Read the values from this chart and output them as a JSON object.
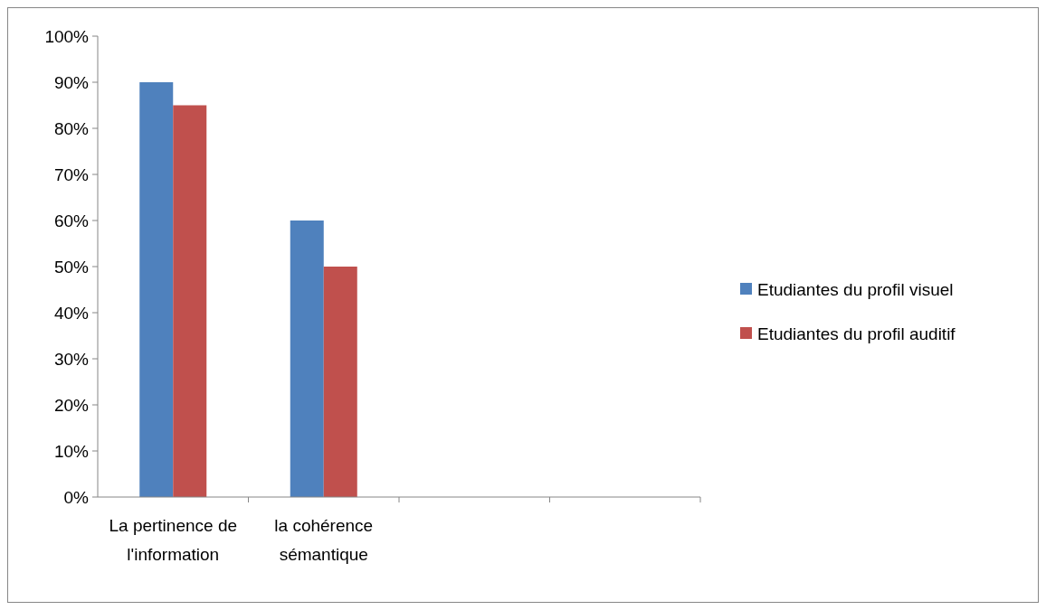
{
  "chart_data": {
    "type": "bar",
    "categories": [
      "La pertinence de l'information",
      "la cohérence sémantique",
      null,
      null
    ],
    "series": [
      {
        "name": "Etudiantes du profil visuel",
        "color": "#4f81bd",
        "values": [
          90,
          60,
          null,
          null
        ]
      },
      {
        "name": "Etudiantes du profil auditif",
        "color": "#c0504d",
        "values": [
          85,
          50,
          null,
          null
        ]
      }
    ],
    "ylim": [
      0,
      100
    ],
    "yticks": [
      {
        "value": 0,
        "label": "0%"
      },
      {
        "value": 10,
        "label": "10%"
      },
      {
        "value": 20,
        "label": "20%"
      },
      {
        "value": 30,
        "label": "30%"
      },
      {
        "value": 40,
        "label": "40%"
      },
      {
        "value": 50,
        "label": "50%"
      },
      {
        "value": 60,
        "label": "60%"
      },
      {
        "value": 70,
        "label": "70%"
      },
      {
        "value": 80,
        "label": "80%"
      },
      {
        "value": 90,
        "label": "90%"
      },
      {
        "value": 100,
        "label": "100%"
      }
    ],
    "grid": false,
    "legend": "right"
  }
}
